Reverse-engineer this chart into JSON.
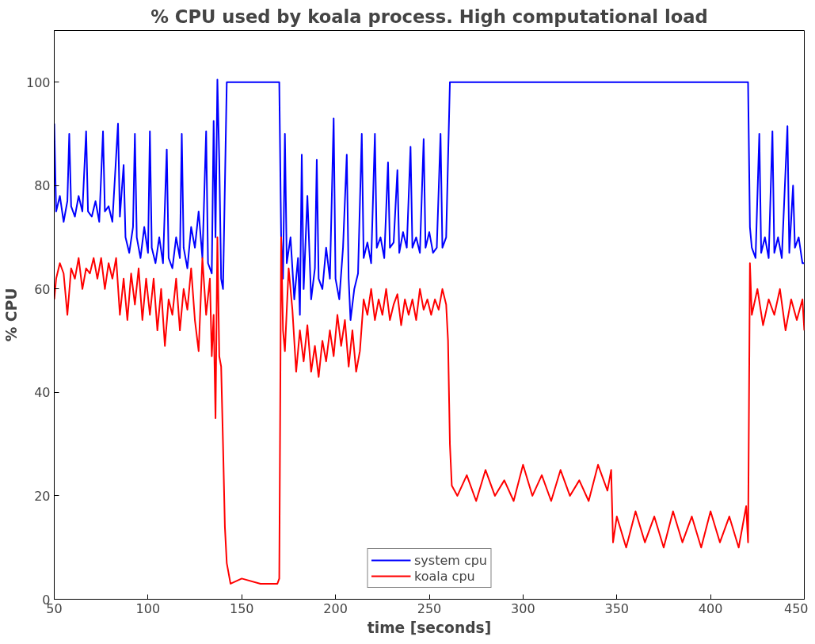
{
  "chart_data": {
    "type": "line",
    "title": "% CPU used by koala process. High computational load",
    "xlabel": "time [seconds]",
    "ylabel": "% CPU",
    "xlim": [
      50,
      450
    ],
    "ylim": [
      0,
      110
    ],
    "xticks": [
      50,
      100,
      150,
      200,
      250,
      300,
      350,
      400,
      450
    ],
    "yticks": [
      0,
      20,
      40,
      60,
      80,
      100
    ],
    "grid": false,
    "legend": "bottom",
    "marker": "none",
    "line_style": "solid",
    "series": [
      {
        "name": "system cpu",
        "color": "#0000ff",
        "x": [
          50,
          51,
          53,
          55,
          57,
          58,
          59,
          61,
          63,
          65,
          67,
          68,
          70,
          72,
          74,
          76,
          77,
          79,
          81,
          84,
          85,
          87,
          88,
          90,
          92,
          93,
          94,
          96,
          98,
          100,
          101,
          102,
          104,
          106,
          108,
          110,
          111,
          113,
          115,
          117,
          118,
          119,
          121,
          123,
          125,
          127,
          129,
          131,
          132,
          134,
          135,
          136,
          137,
          138,
          139,
          140,
          141,
          142,
          170,
          171,
          172,
          173,
          174,
          176,
          178,
          180,
          181,
          182,
          183,
          185,
          187,
          189,
          190,
          191,
          193,
          195,
          197,
          199,
          200,
          202,
          204,
          206,
          207,
          208,
          210,
          212,
          214,
          215,
          217,
          219,
          221,
          222,
          224,
          226,
          228,
          229,
          231,
          233,
          234,
          236,
          238,
          240,
          241,
          243,
          245,
          247,
          248,
          250,
          252,
          254,
          256,
          257,
          259,
          261,
          420,
          421,
          422,
          424,
          426,
          427,
          429,
          431,
          433,
          434,
          436,
          438,
          441,
          442,
          444,
          445,
          447,
          449,
          450
        ],
        "values": [
          92,
          75,
          78,
          73,
          77,
          90,
          76,
          74,
          78,
          75,
          90.5,
          75,
          74,
          77,
          73,
          90.5,
          75,
          76,
          73,
          92,
          74,
          84,
          70,
          67,
          72,
          90,
          70,
          66,
          72,
          67,
          90.5,
          68,
          65,
          70,
          65,
          87,
          66,
          64,
          70,
          66,
          90,
          68,
          64,
          72,
          68,
          75,
          66,
          90.5,
          65,
          63,
          92.5,
          70,
          100.5,
          85,
          62,
          60,
          80,
          100,
          100,
          70,
          62,
          90,
          65,
          70,
          58,
          66,
          55,
          86,
          60,
          78,
          58,
          64,
          85,
          62,
          60,
          68,
          62,
          93,
          62,
          58,
          68,
          86,
          62,
          54,
          60,
          63,
          90,
          66,
          69,
          65,
          90,
          68,
          70,
          66,
          84.5,
          68,
          69,
          83,
          67,
          71,
          68,
          87.5,
          68,
          70,
          67,
          89,
          68,
          71,
          67,
          68,
          90,
          68,
          70,
          100,
          100,
          72,
          68,
          66,
          90,
          67,
          70,
          66,
          90.5,
          67,
          70,
          66,
          91.5,
          67,
          80,
          68,
          70,
          65,
          65
        ]
      },
      {
        "name": "koala cpu",
        "color": "#ff0000",
        "x": [
          50,
          51,
          53,
          55,
          57,
          59,
          61,
          63,
          65,
          67,
          69,
          71,
          73,
          75,
          77,
          79,
          81,
          83,
          85,
          87,
          89,
          91,
          93,
          95,
          97,
          99,
          101,
          103,
          105,
          107,
          109,
          111,
          113,
          115,
          117,
          119,
          121,
          123,
          125,
          127,
          129,
          131,
          133,
          134,
          135,
          136,
          137,
          138,
          139,
          140,
          141,
          142,
          144,
          150,
          160,
          169,
          170,
          171,
          172,
          173,
          175,
          177,
          179,
          181,
          183,
          185,
          187,
          189,
          191,
          193,
          195,
          197,
          199,
          201,
          203,
          205,
          207,
          209,
          211,
          213,
          215,
          217,
          219,
          221,
          223,
          225,
          227,
          229,
          231,
          233,
          235,
          237,
          239,
          241,
          243,
          245,
          247,
          249,
          251,
          253,
          255,
          257,
          259,
          260,
          261,
          262,
          265,
          270,
          275,
          280,
          285,
          290,
          295,
          300,
          305,
          310,
          315,
          320,
          325,
          330,
          335,
          340,
          345,
          347,
          348,
          350,
          355,
          360,
          365,
          370,
          375,
          380,
          385,
          390,
          395,
          400,
          405,
          410,
          415,
          419,
          420,
          421,
          422,
          425,
          428,
          431,
          434,
          437,
          440,
          443,
          446,
          449,
          450
        ],
        "values": [
          58,
          62,
          65,
          63,
          55,
          64,
          62,
          66,
          60,
          64,
          63,
          66,
          62,
          66,
          60,
          65,
          62,
          66,
          55,
          62,
          54,
          63,
          57,
          64,
          54,
          62,
          55,
          62,
          52,
          60,
          49,
          58,
          55,
          62,
          52,
          60,
          56,
          64,
          54,
          48,
          66,
          55,
          62,
          47,
          55,
          35,
          70,
          47,
          45,
          30,
          14,
          7,
          3,
          4,
          3,
          3,
          4,
          70,
          52,
          48,
          64,
          56,
          44,
          52,
          46,
          53,
          44,
          49,
          43,
          50,
          46,
          52,
          47,
          55,
          49,
          54,
          45,
          52,
          44,
          48,
          58,
          55,
          60,
          54,
          58,
          55,
          60,
          54,
          57,
          59,
          53,
          58,
          55,
          58,
          54,
          60,
          56,
          58,
          55,
          58,
          56,
          60,
          57,
          50,
          30,
          22,
          20,
          24,
          19,
          25,
          20,
          23,
          19,
          26,
          20,
          24,
          19,
          25,
          20,
          23,
          19,
          26,
          21,
          25,
          11,
          16,
          10,
          17,
          11,
          16,
          10,
          17,
          11,
          16,
          10,
          17,
          11,
          16,
          10,
          18,
          11,
          65,
          55,
          60,
          53,
          58,
          55,
          60,
          52,
          58,
          54,
          58,
          52
        ]
      }
    ]
  }
}
